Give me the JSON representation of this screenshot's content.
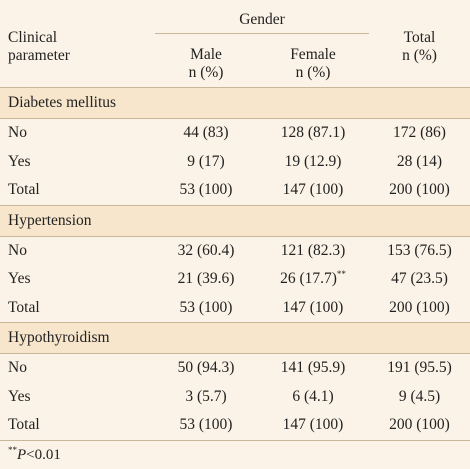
{
  "header": {
    "clinical": "Clinical",
    "parameter": "parameter",
    "gender": "Gender",
    "total_line1": "Total",
    "total_line2": "n (%)",
    "male_line1": "Male",
    "male_line2": "n (%)",
    "female_line1": "Female",
    "female_line2": "n (%)"
  },
  "sections": [
    {
      "title": "Diabetes mellitus",
      "rows": [
        {
          "label": "No",
          "male": "44 (83)",
          "female": "128 (87.1)",
          "total": "172 (86)"
        },
        {
          "label": "Yes",
          "male": "9 (17)",
          "female": "19 (12.9)",
          "total": "28 (14)"
        },
        {
          "label": "Total",
          "male": "53 (100)",
          "female": "147 (100)",
          "total": "200 (100)"
        }
      ]
    },
    {
      "title": "Hypertension",
      "rows": [
        {
          "label": "No",
          "male": "32 (60.4)",
          "female": "121 (82.3)",
          "total": "153 (76.5)"
        },
        {
          "label": "Yes",
          "male": "21 (39.6)",
          "female": "26 (17.7)",
          "female_sup": "**",
          "total": "47 (23.5)"
        },
        {
          "label": "Total",
          "male": "53 (100)",
          "female": "147 (100)",
          "total": "200 (100)"
        }
      ]
    },
    {
      "title": "Hypothyroidism",
      "rows": [
        {
          "label": "No",
          "male": "50 (94.3)",
          "female": "141 (95.9)",
          "total": "191 (95.5)"
        },
        {
          "label": "Yes",
          "male": "3 (5.7)",
          "female": "6 (4.1)",
          "total": "9 (4.5)"
        },
        {
          "label": "Total",
          "male": "53 (100)",
          "female": "147 (100)",
          "total": "200 (100)"
        }
      ]
    }
  ],
  "footnote": {
    "sup": "**",
    "p": "P",
    "rest": "<0.01"
  }
}
